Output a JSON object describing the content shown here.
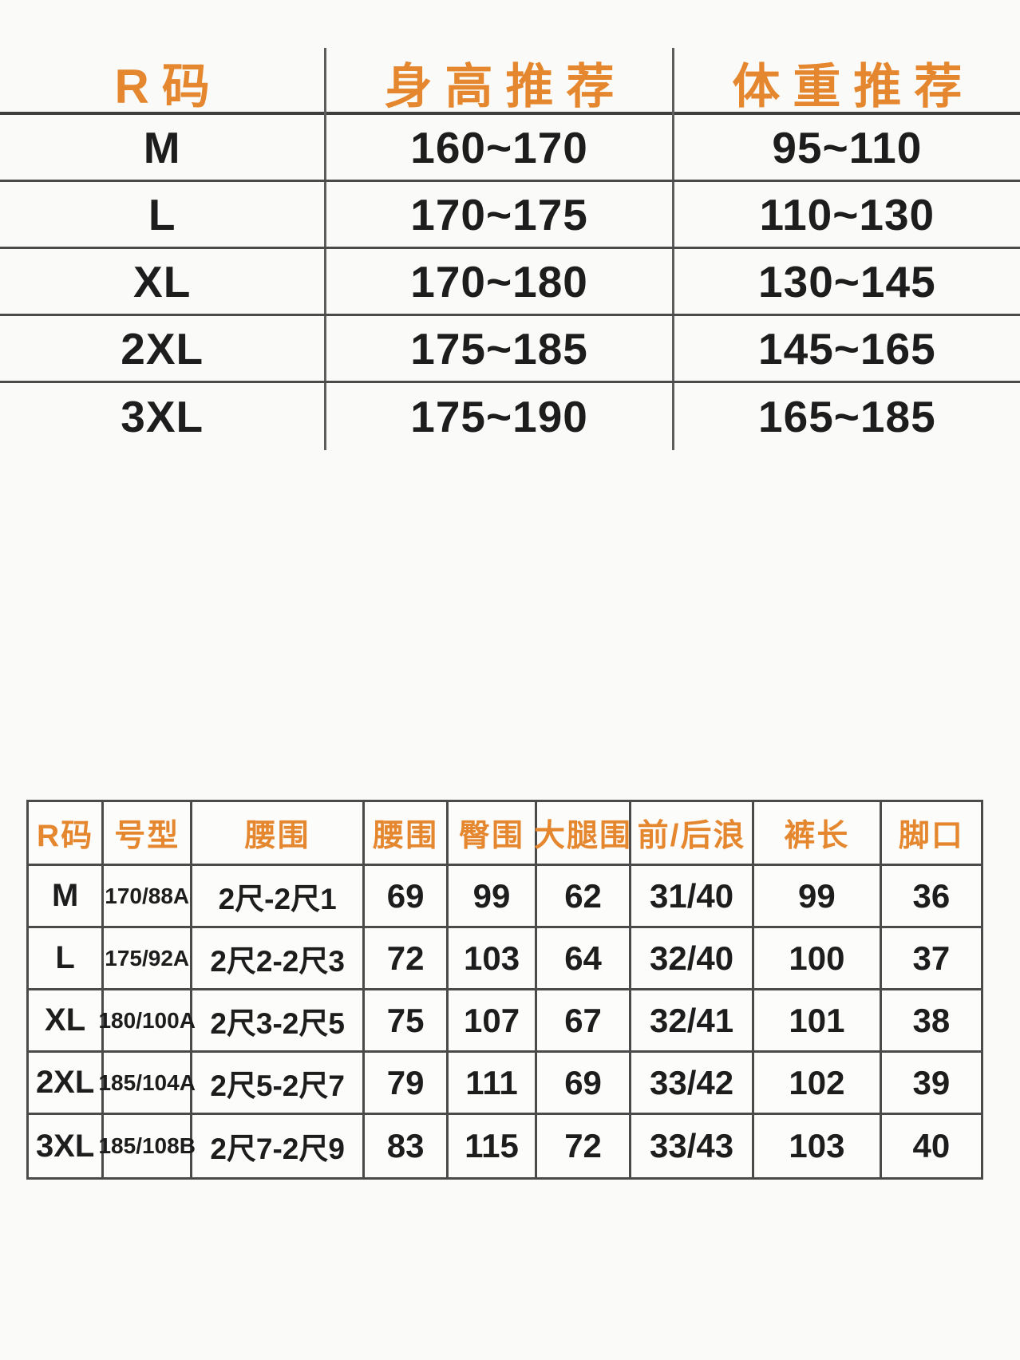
{
  "colors": {
    "header_orange": "#e5872f",
    "body_text": "#1d1d1d",
    "grid_line": "#4a4a4a",
    "background": "#fafaf9"
  },
  "chart_data": [
    {
      "type": "table",
      "columns": [
        "R码",
        "身高推荐",
        "体重推荐"
      ],
      "rows": [
        [
          "M",
          "160~170",
          "95~110"
        ],
        [
          "L",
          "170~175",
          "110~130"
        ],
        [
          "XL",
          "170~180",
          "130~145"
        ],
        [
          "2XL",
          "175~185",
          "145~165"
        ],
        [
          "3XL",
          "175~190",
          "165~185"
        ]
      ],
      "layout": {
        "grid": "horizontal lines full width, vertical separators between 3 columns, no outer box"
      }
    },
    {
      "type": "table",
      "columns": [
        "R码",
        "号型",
        "腰围",
        "腰围",
        "臀围",
        "大腿围",
        "前/后浪",
        "裤长",
        "脚口"
      ],
      "rows": [
        [
          "M",
          "170/88A",
          "2尺-2尺1",
          "69",
          "99",
          "62",
          "31/40",
          "99",
          "36"
        ],
        [
          "L",
          "175/92A",
          "2尺2-2尺3",
          "72",
          "103",
          "64",
          "32/40",
          "100",
          "37"
        ],
        [
          "XL",
          "180/100A",
          "2尺3-2尺5",
          "75",
          "107",
          "67",
          "32/41",
          "101",
          "38"
        ],
        [
          "2XL",
          "185/104A",
          "2尺5-2尺7",
          "79",
          "111",
          "69",
          "33/42",
          "102",
          "39"
        ],
        [
          "3XL",
          "185/108B",
          "2尺7-2尺9",
          "83",
          "115",
          "72",
          "33/43",
          "103",
          "40"
        ]
      ],
      "layout": {
        "grid": "full grid with outer border, 9 columns, header row + 5 data rows"
      }
    }
  ]
}
